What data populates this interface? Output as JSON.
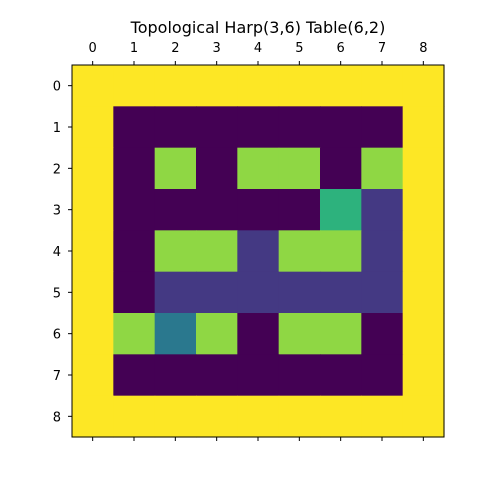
{
  "chart_data": {
    "type": "heatmap",
    "title": "Topological Harp(3,6) Table(6,2)",
    "x_ticks": [
      "0",
      "1",
      "2",
      "3",
      "4",
      "5",
      "6",
      "7",
      "8"
    ],
    "y_ticks": [
      "0",
      "1",
      "2",
      "3",
      "4",
      "5",
      "6",
      "7",
      "8"
    ],
    "xlim": [
      -0.5,
      8.5
    ],
    "ylim": [
      8.5,
      -0.5
    ],
    "x_axis_position": "top",
    "colormap": "viridis",
    "value_range": [
      0,
      6
    ],
    "grid": false,
    "matrix": [
      [
        6,
        6,
        6,
        6,
        6,
        6,
        6,
        6,
        6
      ],
      [
        6,
        0,
        0,
        0,
        0,
        0,
        0,
        0,
        6
      ],
      [
        6,
        0,
        5,
        0,
        5,
        5,
        0,
        5,
        6
      ],
      [
        6,
        0,
        0,
        0,
        0,
        0,
        4,
        1,
        6
      ],
      [
        6,
        0,
        5,
        5,
        1,
        5,
        5,
        1,
        6
      ],
      [
        6,
        0,
        1,
        1,
        1,
        1,
        1,
        1,
        6
      ],
      [
        6,
        5,
        2,
        5,
        0,
        5,
        5,
        0,
        6
      ],
      [
        6,
        0,
        0,
        0,
        0,
        0,
        0,
        0,
        6
      ],
      [
        6,
        6,
        6,
        6,
        6,
        6,
        6,
        6,
        6
      ]
    ],
    "value_colors": {
      "0": "#440154",
      "1": "#443983",
      "2": "#2a788e",
      "4": "#2db27d",
      "5": "#8fd744",
      "6": "#fde725"
    }
  }
}
